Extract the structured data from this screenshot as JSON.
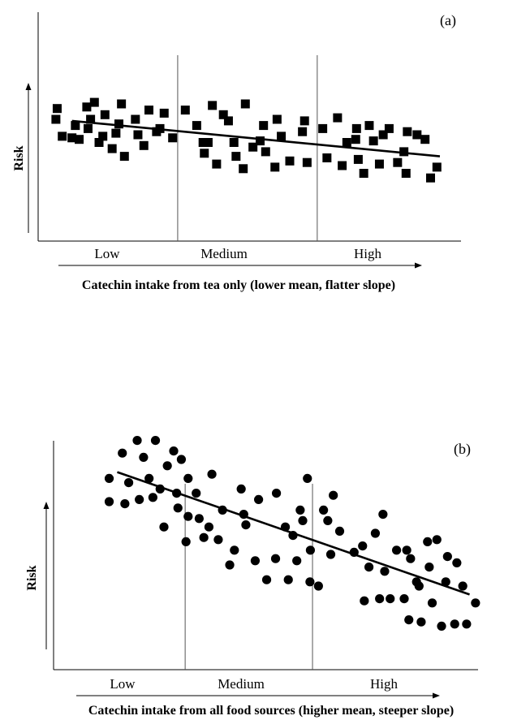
{
  "chart_data": [
    {
      "type": "scatter",
      "panel_label": "(a)",
      "title": "",
      "xlabel": "Catechin intake from tea only (lower mean, flatter slope)",
      "ylabel": "Risk",
      "x_bands": [
        "Low",
        "Medium",
        "High"
      ],
      "xlim": [
        0,
        100
      ],
      "ylim": [
        0,
        100
      ],
      "grid": false,
      "marker": "square",
      "band_dividers_x": [
        33,
        66
      ],
      "trend_line": {
        "x": [
          8,
          95
        ],
        "y": [
          69,
          46
        ]
      },
      "points": {
        "x": [
          4.5,
          4.2,
          5.7,
          8,
          8.8,
          9.7,
          11.5,
          12.4,
          11.8,
          13.3,
          14.4,
          15.3,
          15.8,
          17.5,
          18.4,
          19.1,
          19.7,
          20.4,
          23,
          23.6,
          25,
          26.2,
          28,
          28.8,
          29.8,
          31.8,
          34.8,
          37.5,
          39,
          39.3,
          40.2,
          41.2,
          42.2,
          43.8,
          45,
          46.3,
          46.8,
          48.5,
          49,
          50.8,
          52.5,
          53.3,
          53.8,
          56,
          56.5,
          57.5,
          59.5,
          62.5,
          63,
          63.6,
          67.3,
          68.3,
          70.8,
          71.9,
          73,
          75.1,
          75.3,
          75.7,
          77,
          78.3,
          79.3,
          80.7,
          81.6,
          83,
          85,
          86.5,
          87,
          87.3,
          89.6,
          91.5,
          92.8,
          94.3
        ],
        "y": [
          77,
          70,
          59,
          58,
          66,
          57,
          78,
          70,
          64,
          81,
          55,
          59,
          73,
          51,
          61,
          67,
          80,
          46,
          70,
          60,
          53,
          76,
          62,
          64,
          74,
          58,
          76,
          66,
          55,
          48,
          55,
          79,
          41,
          73,
          69,
          55,
          46,
          38,
          80,
          52,
          56,
          66,
          49,
          39,
          70,
          59,
          43,
          62,
          69,
          42,
          64,
          45,
          71,
          40,
          55,
          57,
          64,
          44,
          35,
          66,
          56,
          41,
          60,
          64,
          42,
          49,
          35,
          62,
          60,
          57,
          32,
          39
        ]
      }
    },
    {
      "type": "scatter",
      "panel_label": "(b)",
      "title": "",
      "xlabel": "Catechin intake from all food sources (higher mean, steeper slope)",
      "ylabel": "Risk",
      "x_bands": [
        "Low",
        "Medium",
        "High"
      ],
      "xlim": [
        0,
        100
      ],
      "ylim": [
        0,
        100
      ],
      "grid": false,
      "marker": "circle",
      "band_dividers_x": [
        31,
        61
      ],
      "trend_line": {
        "x": [
          15,
          98
        ],
        "y": [
          89,
          31
        ]
      },
      "points": {
        "x": [
          13.1,
          13.1,
          16.2,
          16.8,
          17.7,
          19.7,
          20.2,
          21.2,
          22.5,
          23.4,
          24,
          25.1,
          26,
          26.8,
          28.3,
          29,
          29.3,
          30.1,
          31.2,
          31.7,
          31.7,
          33.6,
          34.3,
          35.4,
          36.6,
          37.3,
          38.8,
          39.8,
          41.5,
          42.6,
          44.2,
          44.8,
          45.3,
          47.5,
          48.3,
          50.2,
          52.3,
          52.5,
          54.6,
          55.3,
          56.4,
          57.3,
          58.1,
          58.7,
          59.8,
          60.4,
          60.5,
          62.4,
          63.6,
          64.6,
          65.3,
          65.9,
          67.4,
          70.8,
          72.8,
          73.2,
          74.3,
          75.8,
          76.8,
          77.6,
          78,
          79.3,
          80.8,
          82.6,
          83.2,
          83.7,
          84.1,
          85.5,
          86.1,
          86.6,
          88.1,
          88.5,
          89.2,
          90.3,
          91.4,
          92.4,
          92.8,
          94.5,
          95,
          96.4,
          97.3,
          99.4
        ],
        "y": [
          86,
          75,
          98,
          74,
          84,
          104,
          76,
          96,
          86,
          77,
          104,
          81,
          63,
          92,
          99,
          79,
          72,
          95,
          56,
          68,
          86,
          79,
          67,
          58,
          63,
          88,
          57,
          71,
          45,
          52,
          81,
          69,
          64,
          47,
          76,
          38,
          48,
          79,
          63,
          38,
          59,
          47,
          71,
          66,
          86,
          37,
          52,
          35,
          71,
          66,
          50,
          78,
          61,
          51,
          54,
          28,
          44,
          60,
          29,
          69,
          42,
          29,
          52,
          29,
          52,
          19,
          48,
          37,
          35,
          18,
          56,
          44,
          27,
          57,
          16,
          37,
          49,
          17,
          46,
          35,
          17,
          27
        ]
      }
    }
  ]
}
